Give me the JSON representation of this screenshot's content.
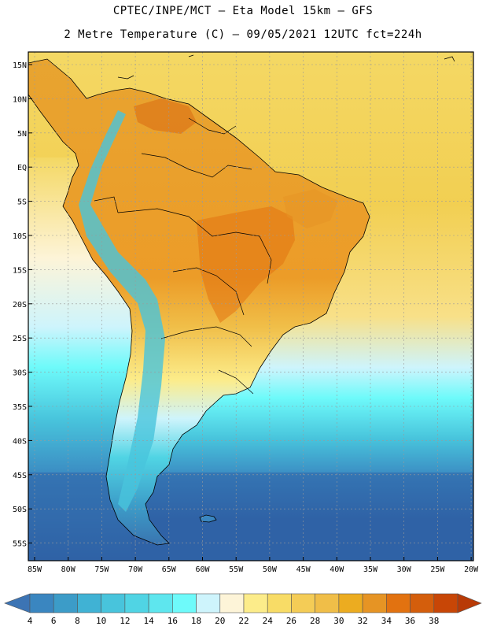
{
  "header": {
    "line1": "CPTEC/INPE/MCT –  Eta Model 15km – GFS",
    "line2": "2 Metre Temperature (C) – 09/05/2021 12UTC fct=224h"
  },
  "map": {
    "lat_labels": [
      "15N",
      "10N",
      "5N",
      "EQ",
      "5S",
      "10S",
      "15S",
      "20S",
      "25S",
      "30S",
      "35S",
      "40S",
      "45S",
      "50S",
      "55S"
    ],
    "lon_labels": [
      "85W",
      "80W",
      "75W",
      "70W",
      "65W",
      "60W",
      "55W",
      "50W",
      "45W",
      "40W",
      "35W",
      "30W",
      "25W",
      "20W"
    ]
  },
  "colorbar": {
    "labels": [
      "4",
      "6",
      "8",
      "10",
      "12",
      "14",
      "16",
      "18",
      "20",
      "22",
      "24",
      "26",
      "28",
      "30",
      "32",
      "34",
      "36",
      "38"
    ],
    "colors": [
      "#3c74b4",
      "#3a86c0",
      "#3c9cc8",
      "#40b2d4",
      "#48c4dc",
      "#50d4e4",
      "#5ee6ee",
      "#6efafa",
      "#cef4fc",
      "#fdf4d8",
      "#fcec8a",
      "#f8dc66",
      "#f4cc56",
      "#f0be48",
      "#ecac20",
      "#e69424",
      "#e27210",
      "#d45e0c",
      "#c84606",
      "#b83a06"
    ]
  }
}
